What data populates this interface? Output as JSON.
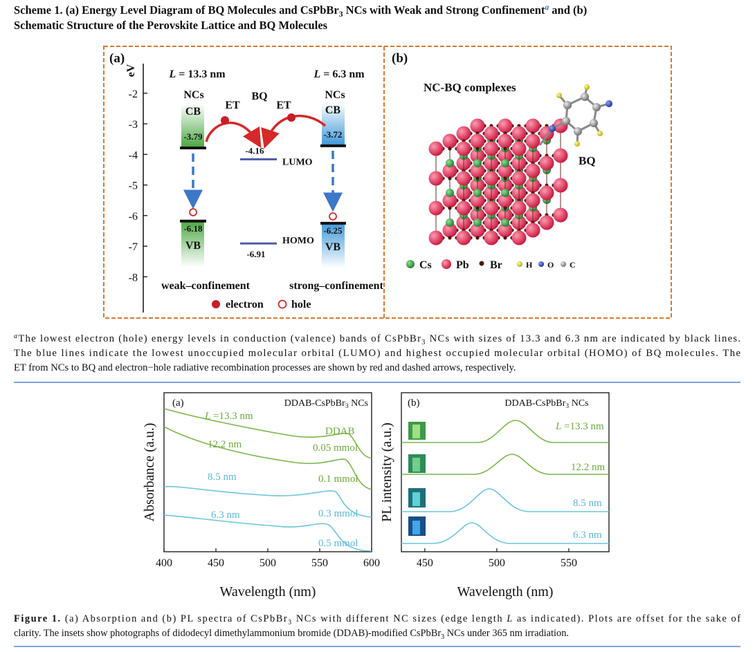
{
  "header": {
    "line1": [
      "Scheme 1.",
      " (a) Energy Level Diagram of BQ Molecules and CsPbBr",
      "3",
      " NCs with Weak and Strong Confinement",
      "a",
      " and (b)"
    ],
    "line2": "Schematic Structure of the Perovskite Lattice and BQ Molecules"
  },
  "scheme_a": {
    "panel_label": "(a)",
    "axis_label": "eV",
    "ylim": [
      -1.1,
      -9.1
    ],
    "yticks": [
      -2,
      -3,
      -4,
      -5,
      -6,
      -7,
      -8
    ],
    "weak_size": [
      "L",
      " = 13.3 nm"
    ],
    "strong_size": [
      "L",
      " = 6.3 nm"
    ],
    "nc_label_weak": "NCs",
    "nc_label_strong": "NCs",
    "bq_label": "BQ",
    "cb_label_weak": "CB",
    "cb_label_strong": "CB",
    "vb_label_weak": "VB",
    "vb_label_strong": "VB",
    "et_label_left": "ET",
    "et_label_right": "ET",
    "levels": {
      "weak_cb": -3.79,
      "strong_cb": -3.72,
      "weak_vb": -6.18,
      "strong_vb": -6.25,
      "lumo": -4.16,
      "homo": -6.91
    },
    "lumo_label": "LUMO",
    "homo_label": "HOMO",
    "weak_caption": "weak–confinement",
    "strong_caption": "strong–confinement",
    "legend": {
      "electron": "electron",
      "hole": "hole"
    }
  },
  "scheme_b": {
    "panel_label": "(b)",
    "complex_label": "NC-BQ complexes",
    "bq_label": "BQ",
    "legend": [
      "Cs",
      "Pb",
      "Br",
      "H",
      "O",
      "C"
    ]
  },
  "footnote": {
    "line1": [
      "a",
      "The lowest electron (hole) energy levels in conduction (valence) bands of CsPbBr",
      "3",
      " NCs with sizes of 13.3 and 6.3 nm are indicated by black lines."
    ],
    "line2": "The blue lines indicate the lowest unoccupied molecular orbital (LUMO) and highest occupied molecular orbital (HOMO) of BQ molecules. The",
    "line3": "ET from NCs to BQ and electron−hole radiative recombination processes are shown by red and dashed arrows, respectively."
  },
  "figure_a": {
    "panel_label": "(a)",
    "title": [
      "DDAB-CsPbBr",
      "3",
      " NCs"
    ],
    "ylabel": "Absorbance (a.u.)",
    "xlabel": "Wavelength (nm)",
    "xlim": [
      400,
      600
    ],
    "xticks": [
      400,
      450,
      500,
      550,
      600
    ],
    "sizes": [
      [
        "L",
        " =13.3 nm"
      ],
      "12.2 nm",
      "8.5 nm",
      "6.3 nm"
    ],
    "ddab_label": "DDAB",
    "amounts": [
      "0.05 mmol",
      "0.1 mmol",
      "0.3 mmol",
      "0.5 mmol"
    ]
  },
  "figure_b": {
    "panel_label": "(b)",
    "title": [
      "DDAB-CsPbBr",
      "3",
      " NCs"
    ],
    "ylabel": "PL intensity (a.u.)",
    "xlabel": "Wavelength (nm)",
    "xlim": [
      433.7,
      577.9
    ],
    "xticks": [
      450,
      500,
      550
    ],
    "sizes": [
      [
        "L",
        " =13.3 nm"
      ],
      "12.2 nm",
      "8.5 nm",
      "6.3 nm"
    ]
  },
  "caption": {
    "line1": [
      "Figure 1.",
      " (a) Absorption and (b) PL spectra of CsPbBr",
      "3",
      " NCs with different NC sizes (edge length ",
      "L",
      " as indicated). Plots are offset for the sake of"
    ],
    "line2": [
      "clarity. The insets show photographs of didodecyl dimethylammonium bromide (DDAB)-modified CsPbBr",
      "3",
      " NCs under 365 nm irradiation."
    ]
  }
}
